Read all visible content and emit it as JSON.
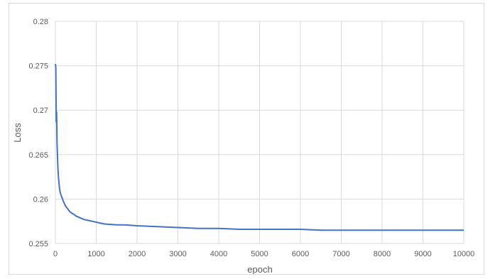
{
  "chart_data": {
    "type": "line",
    "title": "",
    "xlabel": "epoch",
    "ylabel": "Loss",
    "xlim": [
      0,
      10000
    ],
    "ylim": [
      0.255,
      0.28
    ],
    "x_ticks": [
      "0",
      "1000",
      "2000",
      "3000",
      "4000",
      "5000",
      "6000",
      "7000",
      "8000",
      "9000",
      "10000"
    ],
    "y_ticks": [
      "0.255",
      "0.26",
      "0.265",
      "0.27",
      "0.275",
      "0.28"
    ],
    "grid": true,
    "legend": "none",
    "line_color": "#4472c4",
    "series": [
      {
        "x": [
          0,
          10,
          20,
          30,
          40,
          50,
          60,
          70,
          80,
          90,
          100,
          120,
          150,
          200,
          250,
          300,
          350,
          400,
          450,
          500,
          600,
          700,
          800,
          900,
          1000,
          1200,
          1500,
          1700,
          2000,
          2500,
          3000,
          3500,
          4000,
          4500,
          5000,
          5500,
          6000,
          6500,
          7000,
          7500,
          8000,
          8500,
          9000,
          9500,
          10000
        ],
        "y": [
          0.2752,
          0.2748,
          0.2687,
          0.2698,
          0.2664,
          0.265,
          0.2636,
          0.2628,
          0.2622,
          0.2617,
          0.2612,
          0.2607,
          0.2603,
          0.2597,
          0.2592,
          0.2589,
          0.2586,
          0.2584,
          0.2583,
          0.2581,
          0.2579,
          0.2577,
          0.2576,
          0.2575,
          0.2574,
          0.2572,
          0.2571,
          0.2571,
          0.257,
          0.2569,
          0.2568,
          0.2567,
          0.2567,
          0.2566,
          0.2566,
          0.2566,
          0.2566,
          0.2565,
          0.2565,
          0.2565,
          0.2565,
          0.2565,
          0.2565,
          0.2565,
          0.2565
        ]
      }
    ]
  }
}
